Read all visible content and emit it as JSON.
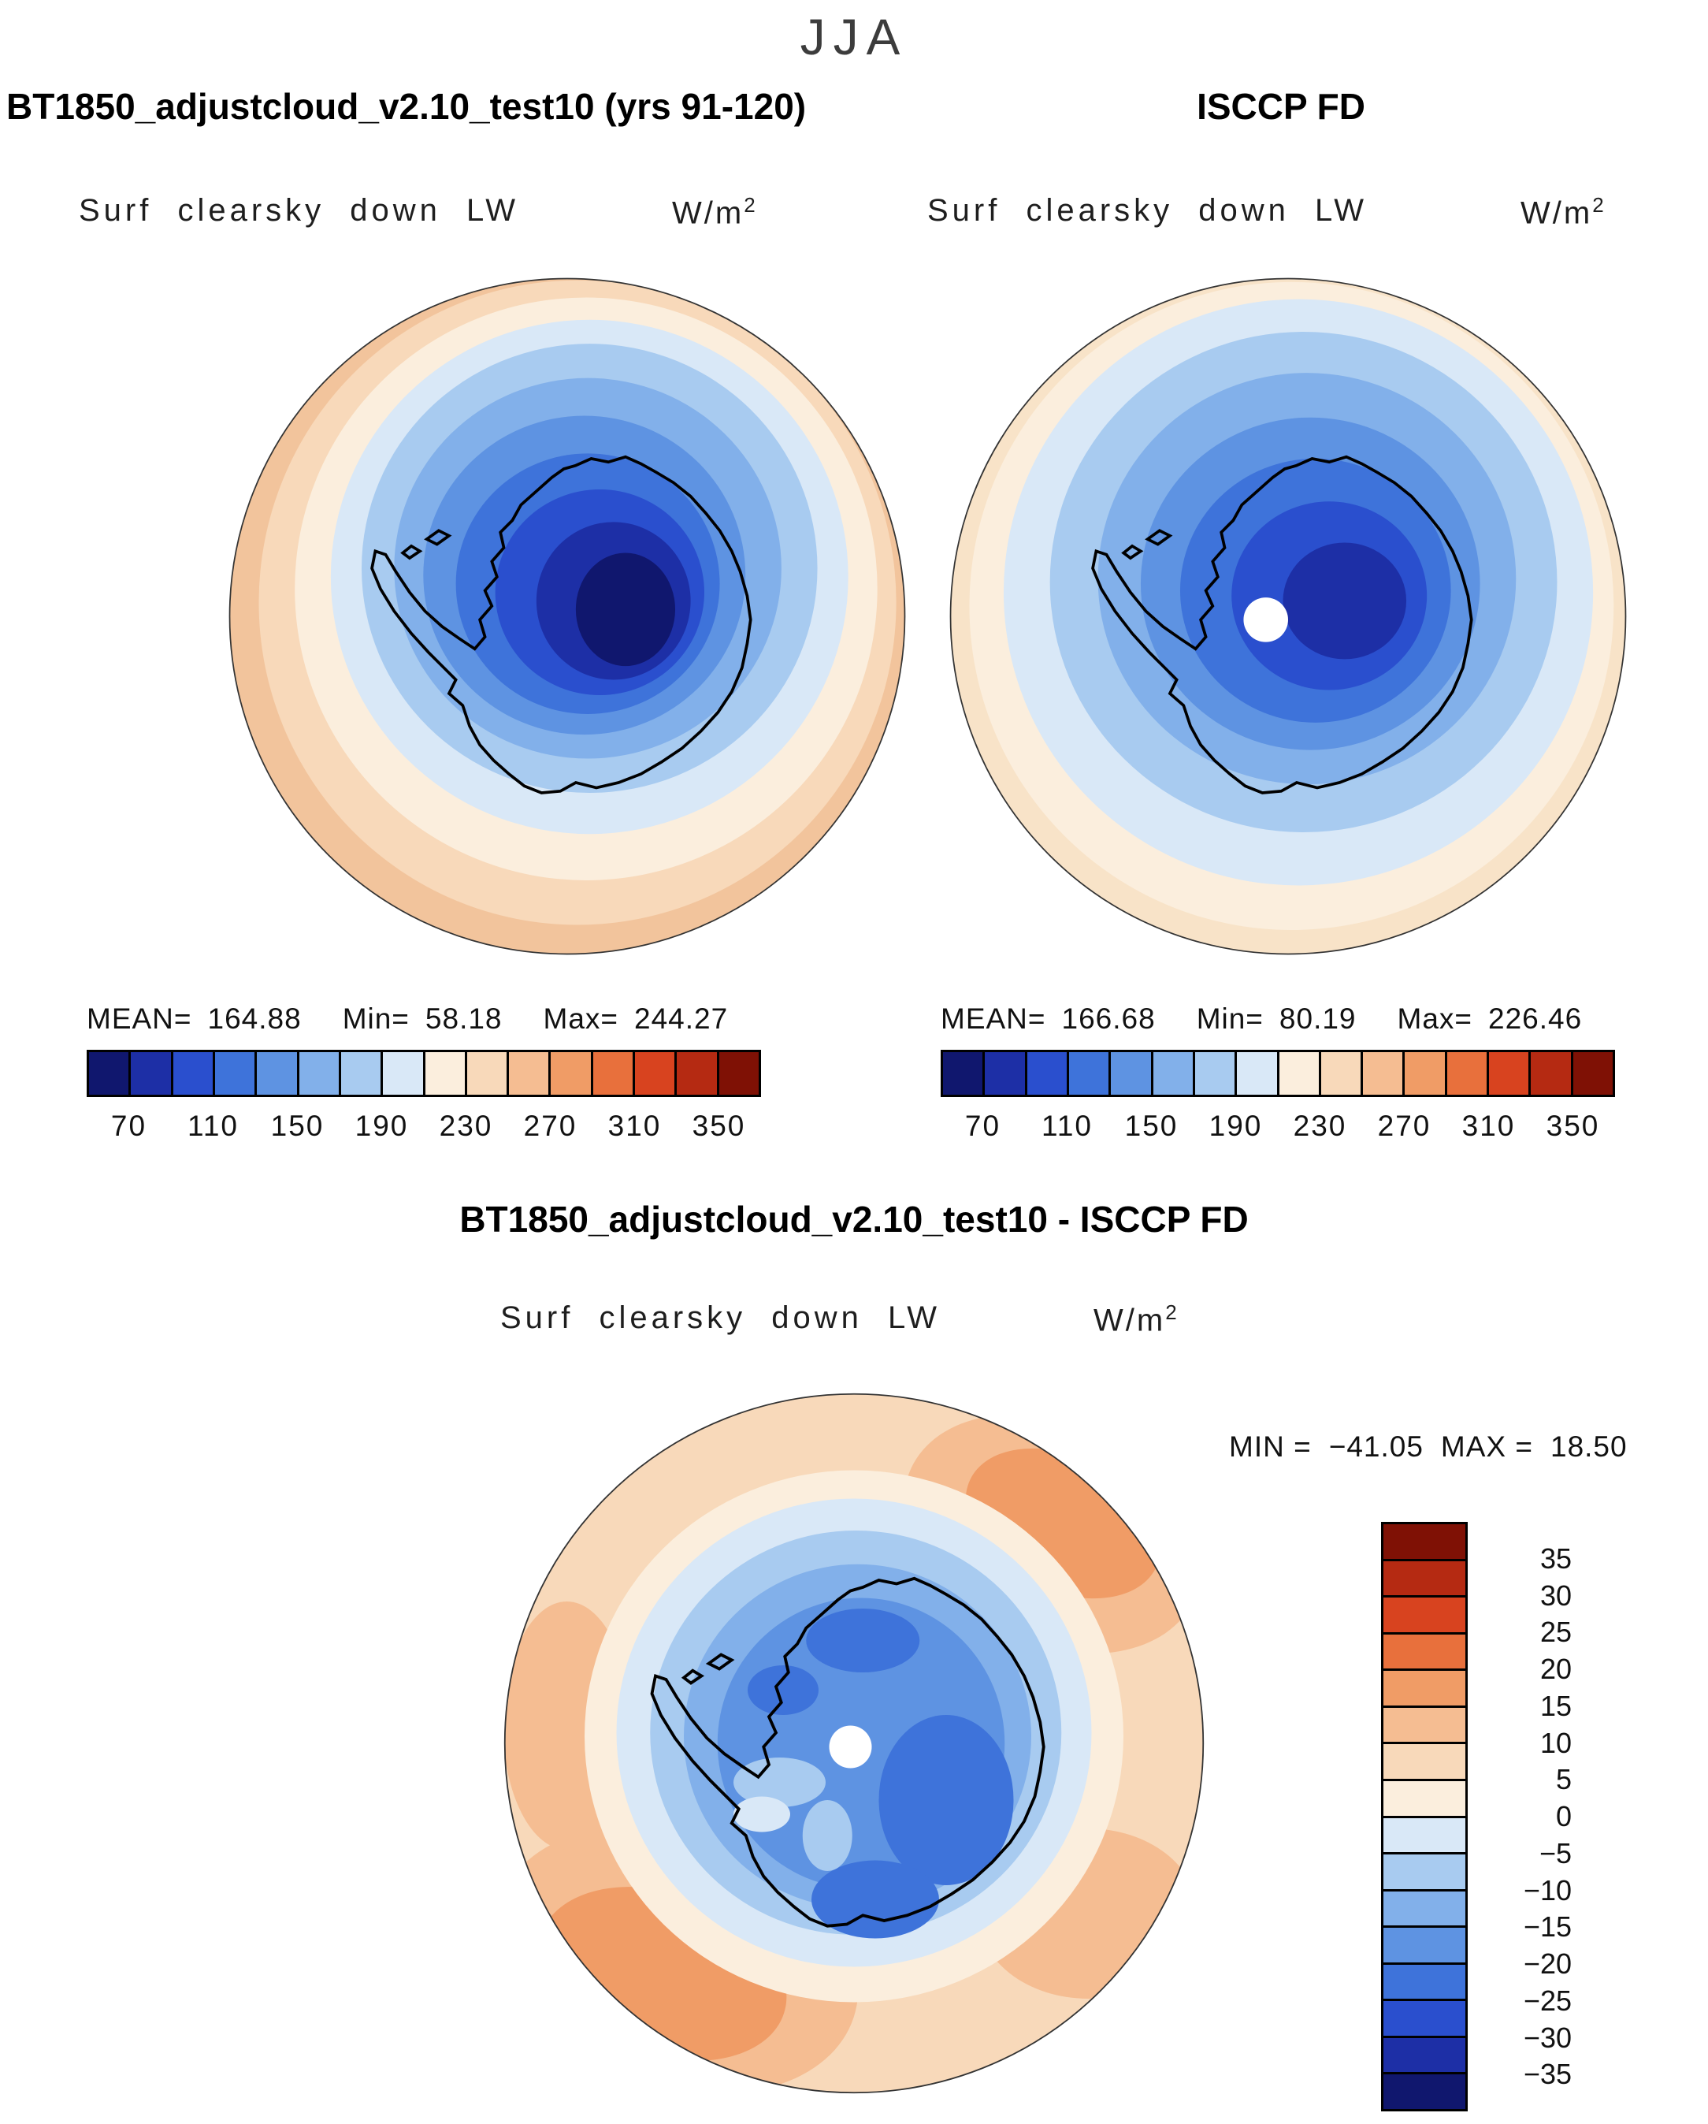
{
  "page_title": "JJA",
  "panels": [
    {
      "title": "BT1850_adjustcloud_v2.10_test10 (yrs 91-120)",
      "subtitle": "Surf clearsky down LW",
      "units_base": "W/m",
      "units_exp": "2",
      "stats": {
        "mean_label": "MEAN=",
        "mean": "164.88",
        "min_label": "Min=",
        "min": "58.18",
        "max_label": "Max=",
        "max": "244.27"
      },
      "ticks": [
        "70",
        "110",
        "150",
        "190",
        "230",
        "270",
        "310",
        "350"
      ]
    },
    {
      "title": "ISCCP FD",
      "subtitle": "Surf clearsky down LW",
      "units_base": "W/m",
      "units_exp": "2",
      "stats": {
        "mean_label": "MEAN=",
        "mean": "166.68",
        "min_label": "Min=",
        "min": "80.19",
        "max_label": "Max=",
        "max": "226.46"
      },
      "ticks": [
        "70",
        "110",
        "150",
        "190",
        "230",
        "270",
        "310",
        "350"
      ]
    }
  ],
  "diff": {
    "title": "BT1850_adjustcloud_v2.10_test10 - ISCCP FD",
    "subtitle": "Surf clearsky down LW",
    "units_base": "W/m",
    "units_exp": "2",
    "min_label": "MIN =",
    "min": "−41.05",
    "max_label": "MAX =",
    "max": "18.50",
    "ticks": [
      "35",
      "30",
      "25",
      "20",
      "15",
      "10",
      "5",
      "0",
      "−5",
      "−10",
      "−15",
      "−20",
      "−25",
      "−30",
      "−35"
    ]
  },
  "chart_data": [
    {
      "type": "heatmap",
      "projection": "south-polar-stereographic",
      "season": "JJA",
      "title": "BT1850_adjustcloud_v2.10_test10 (yrs 91-120)",
      "variable": "Surf clearsky down LW",
      "units": "W/m^2",
      "mean": 164.88,
      "min": 58.18,
      "max": 244.27,
      "contour_interval": 20,
      "level_edges": [
        50,
        70,
        90,
        110,
        130,
        150,
        170,
        190,
        210,
        230,
        250,
        270,
        290,
        310,
        330,
        350,
        370
      ],
      "tick_values": [
        70,
        110,
        150,
        190,
        230,
        270,
        310,
        350
      ],
      "colors": [
        "#10176e",
        "#1d2fa6",
        "#2a4fce",
        "#3e73da",
        "#5e93e2",
        "#82b0ea",
        "#a8cbf0",
        "#d9e8f7",
        "#fbeedd",
        "#f8d9ba",
        "#f5bd92",
        "#f09c66",
        "#e8703c",
        "#d8431f",
        "#b52a12",
        "#7f1105"
      ]
    },
    {
      "type": "heatmap",
      "projection": "south-polar-stereographic",
      "season": "JJA",
      "title": "ISCCP FD",
      "variable": "Surf clearsky down LW",
      "units": "W/m^2",
      "mean": 166.68,
      "min": 80.19,
      "max": 226.46,
      "contour_interval": 20,
      "level_edges": [
        50,
        70,
        90,
        110,
        130,
        150,
        170,
        190,
        210,
        230,
        250,
        270,
        290,
        310,
        330,
        350,
        370
      ],
      "tick_values": [
        70,
        110,
        150,
        190,
        230,
        270,
        310,
        350
      ],
      "colors": [
        "#10176e",
        "#1d2fa6",
        "#2a4fce",
        "#3e73da",
        "#5e93e2",
        "#82b0ea",
        "#a8cbf0",
        "#d9e8f7",
        "#fbeedd",
        "#f8d9ba",
        "#f5bd92",
        "#f09c66",
        "#e8703c",
        "#d8431f",
        "#b52a12",
        "#7f1105"
      ]
    },
    {
      "type": "heatmap",
      "projection": "south-polar-stereographic",
      "season": "JJA",
      "title": "BT1850_adjustcloud_v2.10_test10 - ISCCP FD",
      "variable": "Surf clearsky down LW",
      "units": "W/m^2",
      "min": -41.05,
      "max": 18.5,
      "contour_interval": 5,
      "level_edges": [
        -40,
        -35,
        -30,
        -25,
        -20,
        -15,
        -10,
        -5,
        0,
        5,
        10,
        15,
        20,
        25,
        30,
        35,
        40
      ],
      "tick_values": [
        35,
        30,
        25,
        20,
        15,
        10,
        5,
        0,
        -5,
        -10,
        -15,
        -20,
        -25,
        -30,
        -35
      ],
      "colors_top_to_bottom": [
        "#7f1105",
        "#b52a12",
        "#d8431f",
        "#e8703c",
        "#f09c66",
        "#f5bd92",
        "#f8d9ba",
        "#fbeedd",
        "#d9e8f7",
        "#a8cbf0",
        "#82b0ea",
        "#5e93e2",
        "#3e73da",
        "#2a4fce",
        "#1d2fa6",
        "#10176e"
      ]
    }
  ]
}
